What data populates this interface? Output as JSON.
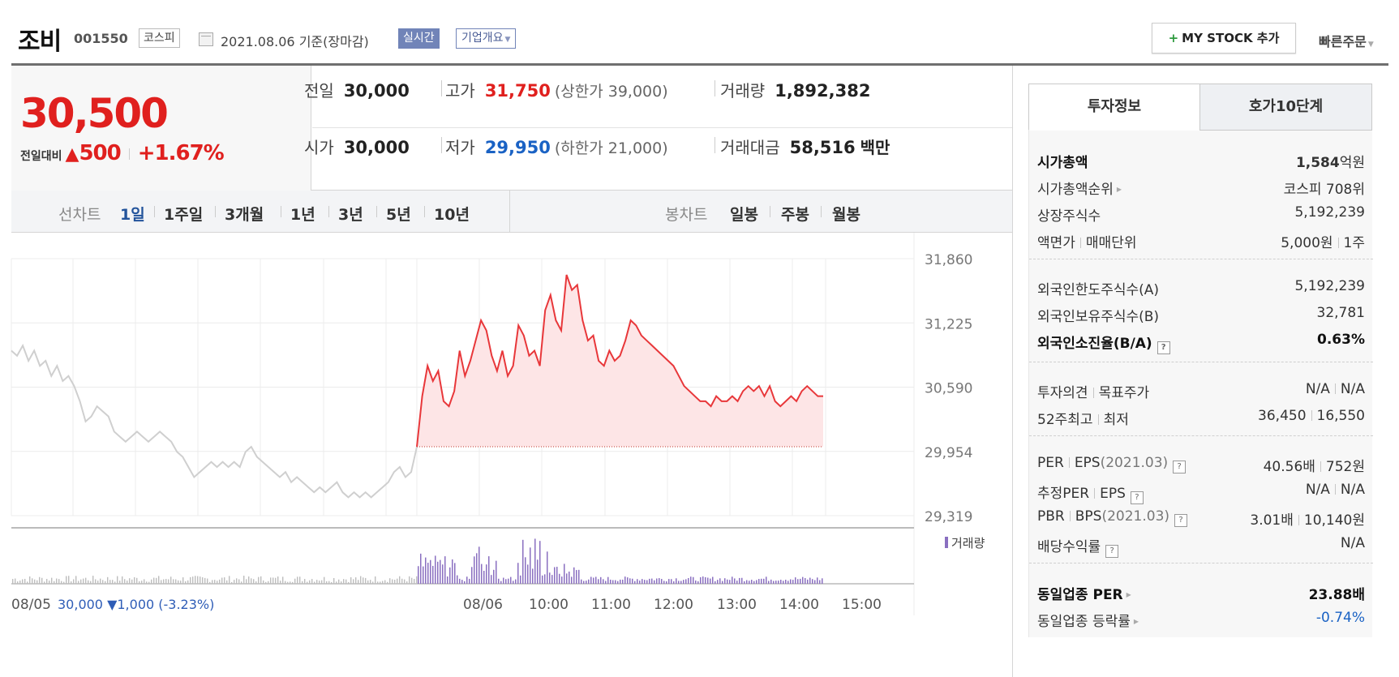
{
  "header": {
    "stock_name": "조비",
    "stock_code": "001550",
    "market": "코스피",
    "as_of": "2021.08.06  기준(장마감)",
    "realtime_label": "실시간",
    "profile_label": "기업개요",
    "mystock_label": "MY STOCK 추가",
    "mystock_plus": "+",
    "quick_order": "빠른주문"
  },
  "summary": {
    "price": "30,500",
    "change_label": "전일대비",
    "change_arrow": "▲",
    "change_amount": "500",
    "change_pct": "+1.67%",
    "prev_label": "전일",
    "prev_value": "30,000",
    "high_label": "고가",
    "high_value": "31,750",
    "upper_limit": "(상한가 39,000)",
    "volume_label": "거래량",
    "volume_value": "1,892,382",
    "open_label": "시가",
    "open_value": "30,000",
    "low_label": "저가",
    "low_value": "29,950",
    "lower_limit": "(하한가 21,000)",
    "amount_label": "거래대금",
    "amount_value": "58,516",
    "amount_unit": "백만"
  },
  "periods": {
    "line_label": "선차트",
    "line_tabs": [
      "1일",
      "1주일",
      "3개월",
      "1년",
      "3년",
      "5년",
      "10년"
    ],
    "active": "1일",
    "candle_label": "봉차트",
    "candle_tabs": [
      "일봉",
      "주봉",
      "월봉"
    ]
  },
  "chart_data": {
    "type": "line",
    "y_ticks": [
      "31,860",
      "31,225",
      "30,590",
      "29,954",
      "29,319"
    ],
    "ylim": [
      29319,
      31860
    ],
    "baseline": 30000,
    "x_ticks": [
      "08/05",
      "08/06",
      "10:00",
      "11:00",
      "12:00",
      "13:00",
      "14:00",
      "15:00"
    ],
    "prev_day_note": "30,000 ▼1,000 (-3.23%)",
    "volume_legend": "거래량",
    "colors": {
      "prev": "#cfcfcf",
      "today": "#e8373a",
      "fill": "#fde5e6",
      "volume": "#8a6fc0",
      "volume_prev": "#bdbdbd"
    },
    "prev_series": [
      30950,
      30900,
      31000,
      30850,
      30950,
      30800,
      30850,
      30700,
      30800,
      30650,
      30700,
      30600,
      30450,
      30250,
      30300,
      30400,
      30350,
      30300,
      30150,
      30100,
      30050,
      30100,
      30150,
      30100,
      30050,
      30100,
      30150,
      30100,
      30050,
      29950,
      29900,
      29800,
      29700,
      29750,
      29800,
      29850,
      29800,
      29850,
      29800,
      29850,
      29800,
      29950,
      30000,
      29900,
      29850,
      29800,
      29750,
      29700,
      29750,
      29650,
      29700,
      29650,
      29600,
      29550,
      29600,
      29550,
      29600,
      29650,
      29550,
      29500,
      29550,
      29500,
      29550,
      29500,
      29550,
      29600,
      29650,
      29750,
      29800,
      29700,
      29750,
      30000
    ],
    "today_series": [
      30000,
      30500,
      30800,
      30650,
      30750,
      30450,
      30400,
      30550,
      30950,
      30700,
      30850,
      31050,
      31250,
      31150,
      30900,
      30750,
      30950,
      30700,
      30800,
      31200,
      31100,
      30900,
      30950,
      30800,
      31350,
      31500,
      31250,
      31150,
      31700,
      31550,
      31600,
      31250,
      31050,
      31100,
      30850,
      30800,
      30950,
      30850,
      30900,
      31050,
      31250,
      31200,
      31100,
      31050,
      31000,
      30950,
      30900,
      30850,
      30800,
      30700,
      30600,
      30550,
      30500,
      30450,
      30450,
      30400,
      30500,
      30450,
      30450,
      30500,
      30450,
      30550,
      30600,
      30550,
      30600,
      30500,
      30600,
      30450,
      30400,
      30450,
      30500,
      30450,
      30550,
      30600,
      30550,
      30500,
      30500
    ]
  },
  "invest_info": {
    "tab_invest": "투자정보",
    "tab_quote": "호가10단계",
    "market_cap_label": "시가총액",
    "market_cap_num": "1,584",
    "market_cap_unit": "억원",
    "rank_label": "시가총액순위",
    "rank_value": "코스피 708위",
    "shares_label": "상장주식수",
    "shares_value": "5,192,239",
    "face_label": "액면가",
    "unit_label": "매매단위",
    "face_value": "5,000원",
    "unit_value": "1주",
    "foreign_limit_label": "외국인한도주식수(A)",
    "foreign_limit_value": "5,192,239",
    "foreign_hold_label": "외국인보유주식수(B)",
    "foreign_hold_value": "32,781",
    "foreign_ratio_label": "외국인소진율(B/A)",
    "foreign_ratio_value": "0.63%",
    "opinion_label": "투자의견",
    "target_label": "목표주가",
    "opinion_value": "N/A",
    "target_value": "N/A",
    "wk52_high_label": "52주최고",
    "wk52_low_label": "최저",
    "wk52_high_value": "36,450",
    "wk52_low_value": "16,550",
    "per_label": "PER",
    "eps_label": "EPS",
    "eps_period": "(2021.03)",
    "per_value": "40.56배",
    "eps_value": "752원",
    "est_per_label": "추정PER",
    "est_eps_label": "EPS",
    "est_per_value": "N/A",
    "est_eps_value": "N/A",
    "pbr_label": "PBR",
    "bps_label": "BPS",
    "bps_period": "(2021.03)",
    "pbr_value": "3.01배",
    "bps_value": "10,140원",
    "div_label": "배당수익률",
    "div_value": "N/A",
    "sector_per_label": "동일업종 PER",
    "sector_per_value": "23.88배",
    "sector_chg_label": "동일업종 등락률",
    "sector_chg_value": "-0.74%"
  }
}
